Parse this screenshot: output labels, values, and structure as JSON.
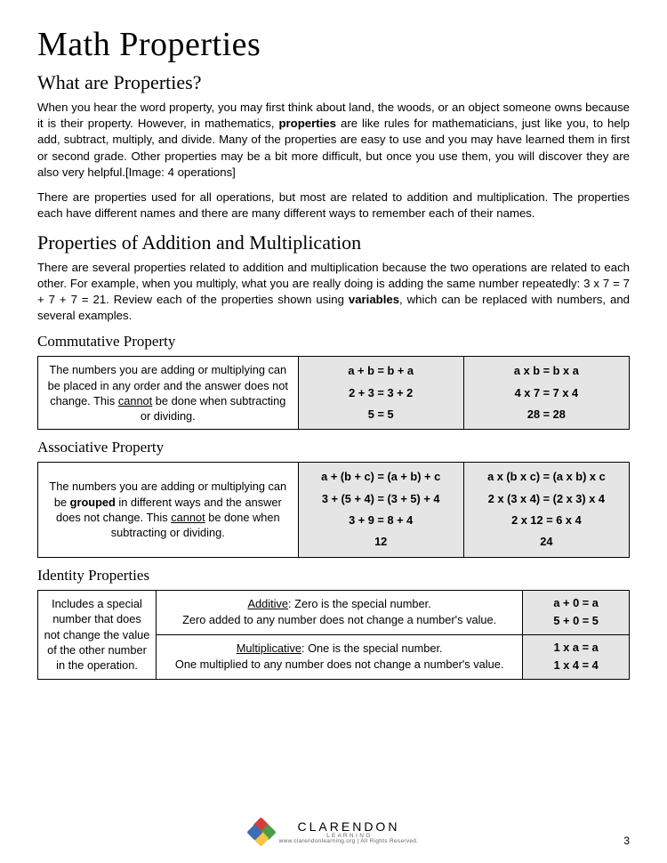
{
  "title": "Math Properties",
  "sec1_heading": "What are Properties?",
  "para1_a": "When you hear the word property, you may first think about land, the woods, or an object someone owns because it is their property.  However, in mathematics, ",
  "para1_b": "properties",
  "para1_c": " are like rules for mathematicians, just like you, to help add, subtract, multiply, and divide.  Many of the properties are easy to use and you may have learned them in first or second grade.  Other properties may be a bit more difficult, but once you use them, you will discover they are also very helpful.[Image: 4 operations]",
  "para2": "There are properties used for all operations, but most are related to addition and multiplication.  The properties each have different names and there are many different ways to remember each of their names.",
  "sec2_heading": "Properties of Addition and Multiplication",
  "para3_a": "There are several properties related to addition and multiplication because the two operations are related to each other.  For example, when you multiply, what you are really doing is adding the same number repeatedly: 3 x 7 = 7 + 7 + 7 = 21.  Review each of the properties shown using ",
  "para3_b": "variables",
  "para3_c": ", which can be replaced with numbers, and several examples.",
  "commutative": {
    "heading": "Commutative Property",
    "desc_a": "The numbers you are adding or multiplying can be placed in any order and the answer does not change.  This ",
    "desc_b": "cannot",
    "desc_c": " be done when subtracting or dividing.",
    "ex1_l1": "a + b = b + a",
    "ex1_l2": "2 + 3 = 3 + 2",
    "ex1_l3": "5 = 5",
    "ex2_l1": "a x b = b x a",
    "ex2_l2": "4 x 7 = 7 x 4",
    "ex2_l3": "28 = 28"
  },
  "associative": {
    "heading": "Associative Property",
    "desc_a": "The numbers you are adding or multiplying can be ",
    "desc_b": "grouped",
    "desc_c": " in different ways and the answer does not change.  This ",
    "desc_d": "cannot",
    "desc_e": " be done when subtracting or dividing.",
    "ex1_l1": "a + (b + c) = (a + b) + c",
    "ex1_l2": "3 + (5 + 4) = (3 + 5) + 4",
    "ex1_l3": "3 + 9 = 8 + 4",
    "ex1_l4": "12",
    "ex2_l1": "a x (b x c) = (a x b) x c",
    "ex2_l2": "2 x (3 x 4) = (2 x 3) x 4",
    "ex2_l3": "2 x 12 = 6 x 4",
    "ex2_l4": "24"
  },
  "identity": {
    "heading": "Identity Properties",
    "desc": "Includes a special number that does not change the value of the other number in the operation.",
    "add_label": "Additive",
    "add_l1": ":  Zero is the special number.",
    "add_l2": "Zero added to any number does not change a number's value.",
    "add_ex1": "a + 0 = a",
    "add_ex2": "5 + 0 = 5",
    "mul_label": "Multiplicative",
    "mul_l1": ":  One is the special number.",
    "mul_l2": "One multiplied to any number does not change a number's value.",
    "mul_ex1": "1 x a = a",
    "mul_ex2": "1 x 4 = 4"
  },
  "footer": {
    "brand": "CLARENDON",
    "sub1": "L  E  A  R  N  I  N  G",
    "sub2": "www.clarendonlearning.org  |  All Rights Reserved.",
    "page": "3"
  }
}
